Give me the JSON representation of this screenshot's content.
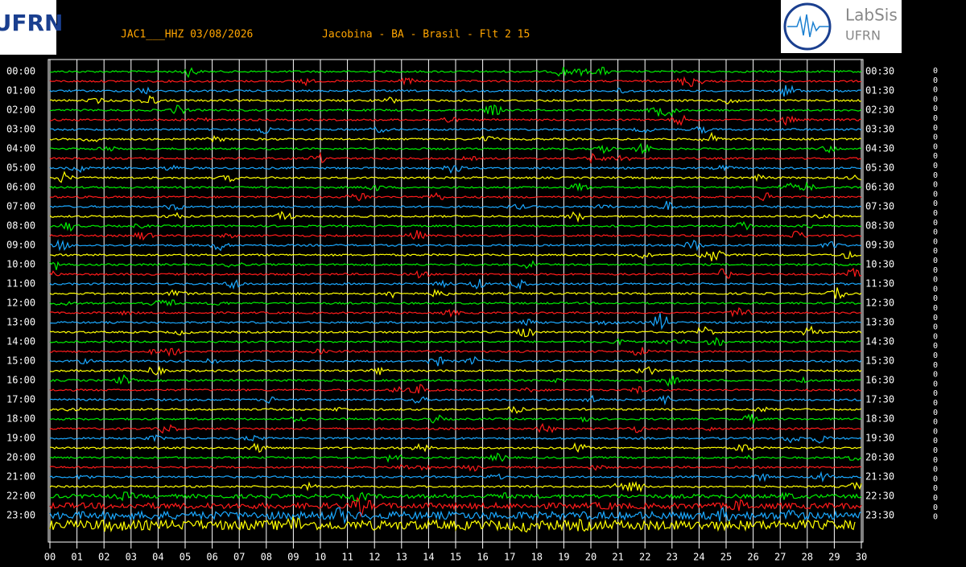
{
  "header": {
    "station": "JAC1___HHZ 03/08/2026",
    "location": "Jacobina - BA - Brasil - Flt 2 15",
    "logo_left": "UFRN",
    "logo_right": [
      "LabSis",
      "UFRN"
    ]
  },
  "rows_left": [
    "00:00",
    "01:00",
    "02:00",
    "03:00",
    "04:00",
    "05:00",
    "06:00",
    "07:00",
    "08:00",
    "09:00",
    "10:00",
    "11:00",
    "12:00",
    "13:00",
    "14:00",
    "15:00",
    "16:00",
    "17:00",
    "18:00",
    "19:00",
    "20:00",
    "21:00",
    "22:00",
    "23:00"
  ],
  "rows_right": [
    "00:30",
    "01:30",
    "02:30",
    "03:30",
    "04:30",
    "05:30",
    "06:30",
    "07:30",
    "08:30",
    "09:30",
    "10:30",
    "11:30",
    "12:30",
    "13:30",
    "14:30",
    "15:30",
    "16:30",
    "17:30",
    "18:30",
    "19:30",
    "20:30",
    "21:30",
    "22:30",
    "23:30"
  ],
  "x_labels": [
    "00",
    "01",
    "02",
    "03",
    "04",
    "05",
    "06",
    "07",
    "08",
    "09",
    "10",
    "11",
    "12",
    "13",
    "14",
    "15",
    "16",
    "17",
    "18",
    "19",
    "20",
    "21",
    "22",
    "23",
    "24",
    "25",
    "26",
    "27",
    "28",
    "29",
    "30"
  ],
  "right_column": [
    0,
    0,
    0,
    0,
    0,
    0,
    0,
    0,
    0,
    0,
    0,
    0,
    0,
    0,
    0,
    0,
    0,
    0,
    0,
    0,
    0,
    0,
    0,
    0,
    0,
    0,
    0,
    0,
    0,
    0,
    0,
    0,
    0,
    0,
    0,
    0,
    0,
    0,
    0,
    0,
    0,
    0,
    0,
    0,
    0,
    0,
    0,
    0
  ],
  "trace_colors": [
    "#00ee00",
    "#ff1a1a",
    "#1aa8ff",
    "#ffff00"
  ]
}
